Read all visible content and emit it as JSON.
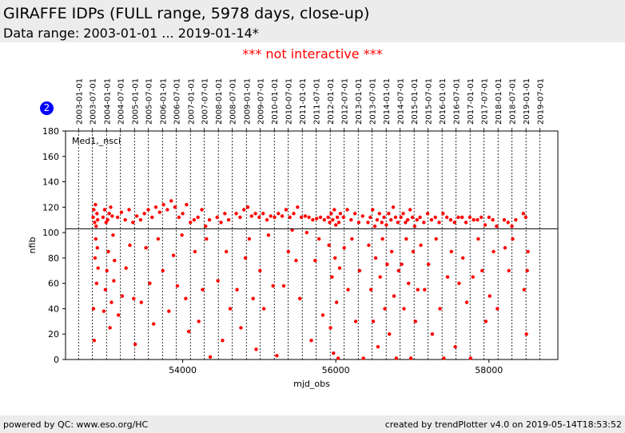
{
  "page": {
    "title": "GIRAFFE IDPs (FULL range, 5978 days, close-up)",
    "subtitle": "Data range: 2003-01-01 ... 2019-01-14*",
    "notice": "*** not interactive ***",
    "badge": "2",
    "footer_left": "powered by QC: www.eso.org/HC",
    "footer_right": "created by trendPlotter v4.0 on 2019-05-14T18:53:52"
  },
  "colors": {
    "points": "#ff0000",
    "badge": "#0000ff",
    "notice": "#ff0000"
  },
  "chart_data": {
    "type": "scatter",
    "series_label": "Med1,_nsci",
    "xlabel": "mjd_obs",
    "ylabel": "nfib",
    "xlim": [
      52470,
      58900
    ],
    "ylim": [
      0,
      180
    ],
    "xticks": [
      54000,
      56000,
      58000
    ],
    "yticks": [
      0,
      20,
      40,
      60,
      80,
      100,
      120,
      140,
      160,
      180
    ],
    "reference_line_y": 103,
    "date_markers": [
      {
        "label": "2003-01-01",
        "mjd": 52640
      },
      {
        "label": "2003-07-01",
        "mjd": 52821
      },
      {
        "label": "2004-01-01",
        "mjd": 53005
      },
      {
        "label": "2004-07-01",
        "mjd": 53187
      },
      {
        "label": "2005-01-01",
        "mjd": 53371
      },
      {
        "label": "2005-07-01",
        "mjd": 53552
      },
      {
        "label": "2006-01-01",
        "mjd": 53736
      },
      {
        "label": "2006-07-01",
        "mjd": 53917
      },
      {
        "label": "2007-01-01",
        "mjd": 54101
      },
      {
        "label": "2007-07-01",
        "mjd": 54282
      },
      {
        "label": "2008-01-01",
        "mjd": 54466
      },
      {
        "label": "2008-07-01",
        "mjd": 54648
      },
      {
        "label": "2009-01-01",
        "mjd": 54832
      },
      {
        "label": "2009-07-01",
        "mjd": 55013
      },
      {
        "label": "2010-01-01",
        "mjd": 55197
      },
      {
        "label": "2010-07-01",
        "mjd": 55378
      },
      {
        "label": "2011-01-01",
        "mjd": 55562
      },
      {
        "label": "2011-07-01",
        "mjd": 55743
      },
      {
        "label": "2012-01-01",
        "mjd": 55927
      },
      {
        "label": "2012-07-01",
        "mjd": 56109
      },
      {
        "label": "2013-01-01",
        "mjd": 56293
      },
      {
        "label": "2013-07-01",
        "mjd": 56474
      },
      {
        "label": "2014-01-01",
        "mjd": 56658
      },
      {
        "label": "2014-07-01",
        "mjd": 56839
      },
      {
        "label": "2015-01-01",
        "mjd": 57023
      },
      {
        "label": "2015-07-01",
        "mjd": 57204
      },
      {
        "label": "2016-01-01",
        "mjd": 57388
      },
      {
        "label": "2016-07-01",
        "mjd": 57570
      },
      {
        "label": "2017-01-01",
        "mjd": 57754
      },
      {
        "label": "2017-07-01",
        "mjd": 57935
      },
      {
        "label": "2018-01-01",
        "mjd": 58119
      },
      {
        "label": "2018-07-01",
        "mjd": 58300
      },
      {
        "label": "2019-01-01",
        "mjd": 58484
      },
      {
        "label": "2019-07-01",
        "mjd": 58665
      }
    ],
    "points": [
      [
        52830,
        112
      ],
      [
        52840,
        118
      ],
      [
        52850,
        108
      ],
      [
        52860,
        122
      ],
      [
        52870,
        105
      ],
      [
        52880,
        115
      ],
      [
        52890,
        110
      ],
      [
        52835,
        40
      ],
      [
        52845,
        15
      ],
      [
        52855,
        80
      ],
      [
        52865,
        95
      ],
      [
        52875,
        60
      ],
      [
        52885,
        88
      ],
      [
        52895,
        72
      ],
      [
        52960,
        112
      ],
      [
        52980,
        118
      ],
      [
        53000,
        108
      ],
      [
        53020,
        110
      ],
      [
        53040,
        115
      ],
      [
        53060,
        120
      ],
      [
        53080,
        113
      ],
      [
        52970,
        38
      ],
      [
        52990,
        55
      ],
      [
        53010,
        70
      ],
      [
        53030,
        85
      ],
      [
        53050,
        25
      ],
      [
        53070,
        45
      ],
      [
        53090,
        98
      ],
      [
        53100,
        62
      ],
      [
        53110,
        78
      ],
      [
        53150,
        112
      ],
      [
        53200,
        116
      ],
      [
        53250,
        110
      ],
      [
        53300,
        118
      ],
      [
        53350,
        108
      ],
      [
        53400,
        113
      ],
      [
        53160,
        35
      ],
      [
        53210,
        50
      ],
      [
        53260,
        72
      ],
      [
        53310,
        90
      ],
      [
        53360,
        48
      ],
      [
        53380,
        12
      ],
      [
        53450,
        110
      ],
      [
        53500,
        115
      ],
      [
        53550,
        118
      ],
      [
        53600,
        112
      ],
      [
        53650,
        120
      ],
      [
        53700,
        116
      ],
      [
        53750,
        122
      ],
      [
        53460,
        45
      ],
      [
        53520,
        88
      ],
      [
        53570,
        60
      ],
      [
        53620,
        28
      ],
      [
        53680,
        95
      ],
      [
        53740,
        70
      ],
      [
        53800,
        118
      ],
      [
        53850,
        125
      ],
      [
        53900,
        120
      ],
      [
        53950,
        112
      ],
      [
        54000,
        115
      ],
      [
        54050,
        122
      ],
      [
        54100,
        108
      ],
      [
        53820,
        38
      ],
      [
        53880,
        82
      ],
      [
        53930,
        58
      ],
      [
        53990,
        98
      ],
      [
        54040,
        48
      ],
      [
        54080,
        22
      ],
      [
        54150,
        110
      ],
      [
        54200,
        112
      ],
      [
        54250,
        118
      ],
      [
        54300,
        105
      ],
      [
        54350,
        110
      ],
      [
        54160,
        85
      ],
      [
        54210,
        30
      ],
      [
        54260,
        55
      ],
      [
        54310,
        95
      ],
      [
        54360,
        2
      ],
      [
        54450,
        112
      ],
      [
        54500,
        108
      ],
      [
        54550,
        115
      ],
      [
        54600,
        110
      ],
      [
        54460,
        62
      ],
      [
        54520,
        15
      ],
      [
        54570,
        85
      ],
      [
        54620,
        40
      ],
      [
        54700,
        115
      ],
      [
        54750,
        112
      ],
      [
        54800,
        118
      ],
      [
        54850,
        120
      ],
      [
        54900,
        113
      ],
      [
        54950,
        115
      ],
      [
        54710,
        55
      ],
      [
        54760,
        25
      ],
      [
        54820,
        80
      ],
      [
        54870,
        95
      ],
      [
        54920,
        48
      ],
      [
        54960,
        8
      ],
      [
        55000,
        112
      ],
      [
        55050,
        115
      ],
      [
        55100,
        110
      ],
      [
        55150,
        113
      ],
      [
        55200,
        112
      ],
      [
        55250,
        115
      ],
      [
        55010,
        70
      ],
      [
        55060,
        40
      ],
      [
        55120,
        98
      ],
      [
        55180,
        58
      ],
      [
        55230,
        3
      ],
      [
        55300,
        113
      ],
      [
        55350,
        118
      ],
      [
        55400,
        112
      ],
      [
        55450,
        115
      ],
      [
        55500,
        120
      ],
      [
        55550,
        112
      ],
      [
        55320,
        58
      ],
      [
        55380,
        85
      ],
      [
        55430,
        102
      ],
      [
        55480,
        78
      ],
      [
        55530,
        48
      ],
      [
        55600,
        113
      ],
      [
        55650,
        112
      ],
      [
        55700,
        110
      ],
      [
        55750,
        111
      ],
      [
        55800,
        112
      ],
      [
        55850,
        110
      ],
      [
        55620,
        100
      ],
      [
        55680,
        15
      ],
      [
        55730,
        78
      ],
      [
        55780,
        95
      ],
      [
        55830,
        35
      ],
      [
        55900,
        112
      ],
      [
        55920,
        108
      ],
      [
        55940,
        115
      ],
      [
        55960,
        110
      ],
      [
        55980,
        118
      ],
      [
        56000,
        106
      ],
      [
        56020,
        112
      ],
      [
        56040,
        108
      ],
      [
        56060,
        115
      ],
      [
        55910,
        90
      ],
      [
        55930,
        25
      ],
      [
        55950,
        65
      ],
      [
        55970,
        5
      ],
      [
        55990,
        80
      ],
      [
        56010,
        45
      ],
      [
        56030,
        1
      ],
      [
        56050,
        72
      ],
      [
        56100,
        112
      ],
      [
        56150,
        118
      ],
      [
        56200,
        110
      ],
      [
        56250,
        115
      ],
      [
        56300,
        108
      ],
      [
        56350,
        113
      ],
      [
        56110,
        88
      ],
      [
        56160,
        55
      ],
      [
        56210,
        95
      ],
      [
        56260,
        30
      ],
      [
        56310,
        70
      ],
      [
        56360,
        1
      ],
      [
        56420,
        108
      ],
      [
        56450,
        112
      ],
      [
        56480,
        118
      ],
      [
        56510,
        105
      ],
      [
        56540,
        110
      ],
      [
        56570,
        115
      ],
      [
        56600,
        108
      ],
      [
        56630,
        112
      ],
      [
        56660,
        106
      ],
      [
        56690,
        115
      ],
      [
        56720,
        110
      ],
      [
        56750,
        120
      ],
      [
        56780,
        112
      ],
      [
        56810,
        108
      ],
      [
        56430,
        90
      ],
      [
        56460,
        55
      ],
      [
        56490,
        30
      ],
      [
        56520,
        80
      ],
      [
        56550,
        10
      ],
      [
        56580,
        65
      ],
      [
        56610,
        95
      ],
      [
        56640,
        40
      ],
      [
        56670,
        75
      ],
      [
        56700,
        20
      ],
      [
        56730,
        85
      ],
      [
        56760,
        50
      ],
      [
        56790,
        1
      ],
      [
        56820,
        70
      ],
      [
        56850,
        112
      ],
      [
        56880,
        115
      ],
      [
        56910,
        108
      ],
      [
        56940,
        110
      ],
      [
        56970,
        118
      ],
      [
        57000,
        112
      ],
      [
        57030,
        105
      ],
      [
        57060,
        110
      ],
      [
        56860,
        75
      ],
      [
        56890,
        40
      ],
      [
        56920,
        95
      ],
      [
        56950,
        60
      ],
      [
        56980,
        1
      ],
      [
        57010,
        85
      ],
      [
        57040,
        30
      ],
      [
        57070,
        55
      ],
      [
        57100,
        112
      ],
      [
        57150,
        108
      ],
      [
        57200,
        115
      ],
      [
        57250,
        110
      ],
      [
        57300,
        112
      ],
      [
        57350,
        108
      ],
      [
        57400,
        115
      ],
      [
        57450,
        112
      ],
      [
        57500,
        110
      ],
      [
        57550,
        108
      ],
      [
        57600,
        112
      ],
      [
        57110,
        90
      ],
      [
        57160,
        55
      ],
      [
        57210,
        75
      ],
      [
        57260,
        20
      ],
      [
        57310,
        95
      ],
      [
        57360,
        40
      ],
      [
        57410,
        1
      ],
      [
        57460,
        65
      ],
      [
        57510,
        85
      ],
      [
        57560,
        10
      ],
      [
        57610,
        60
      ],
      [
        57650,
        112
      ],
      [
        57700,
        108
      ],
      [
        57750,
        112
      ],
      [
        57800,
        110
      ],
      [
        57660,
        80
      ],
      [
        57710,
        45
      ],
      [
        57760,
        1
      ],
      [
        57790,
        65
      ],
      [
        57850,
        110
      ],
      [
        57900,
        112
      ],
      [
        57950,
        106
      ],
      [
        58000,
        112
      ],
      [
        58050,
        110
      ],
      [
        58100,
        105
      ],
      [
        57860,
        95
      ],
      [
        57910,
        70
      ],
      [
        57960,
        30
      ],
      [
        58010,
        50
      ],
      [
        58060,
        85
      ],
      [
        58110,
        40
      ],
      [
        58200,
        110
      ],
      [
        58250,
        108
      ],
      [
        58300,
        105
      ],
      [
        58350,
        110
      ],
      [
        58210,
        88
      ],
      [
        58260,
        70
      ],
      [
        58310,
        95
      ],
      [
        58450,
        115
      ],
      [
        58480,
        112
      ],
      [
        58500,
        70
      ],
      [
        58460,
        55
      ],
      [
        58490,
        20
      ],
      [
        58510,
        85
      ]
    ]
  }
}
